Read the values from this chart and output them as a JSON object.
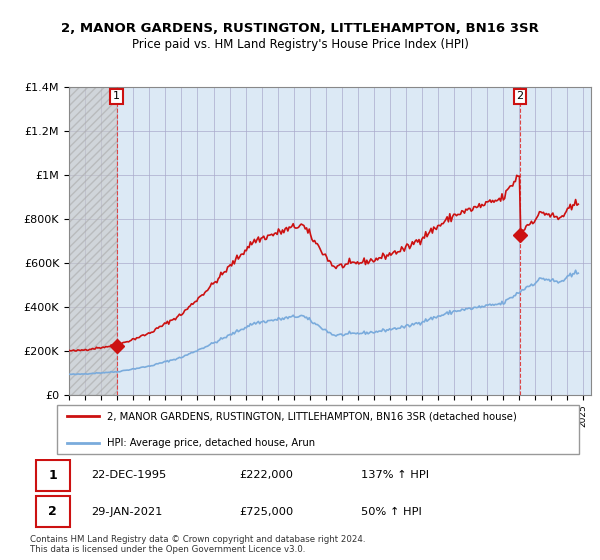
{
  "title_line1": "2, MANOR GARDENS, RUSTINGTON, LITTLEHAMPTON, BN16 3SR",
  "title_line2": "Price paid vs. HM Land Registry's House Price Index (HPI)",
  "hpi_color": "#7aabdc",
  "price_color": "#cc1111",
  "ylim": [
    0,
    1400000
  ],
  "yticks": [
    0,
    200000,
    400000,
    600000,
    800000,
    1000000,
    1200000,
    1400000
  ],
  "ytick_labels": [
    "£0",
    "£200K",
    "£400K",
    "£600K",
    "£800K",
    "£1M",
    "£1.2M",
    "£1.4M"
  ],
  "xlim_start": 1993.0,
  "xlim_end": 2025.5,
  "sale1_date": 1995.97,
  "sale1_price": 222000,
  "sale1_label": "1",
  "sale2_date": 2021.08,
  "sale2_price": 725000,
  "sale2_label": "2",
  "legend_line1": "2, MANOR GARDENS, RUSTINGTON, LITTLEHAMPTON, BN16 3SR (detached house)",
  "legend_line2": "HPI: Average price, detached house, Arun",
  "table_row1": [
    "1",
    "22-DEC-1995",
    "£222,000",
    "137% ↑ HPI"
  ],
  "table_row2": [
    "2",
    "29-JAN-2021",
    "£725,000",
    "50% ↑ HPI"
  ],
  "footnote": "Contains HM Land Registry data © Crown copyright and database right 2024.\nThis data is licensed under the Open Government Licence v3.0.",
  "hatch_end": 1995.97,
  "chart_bg_color": "#dce9f5",
  "hatch_color": "#c8c8c8",
  "grid_color": "#aaaacc"
}
